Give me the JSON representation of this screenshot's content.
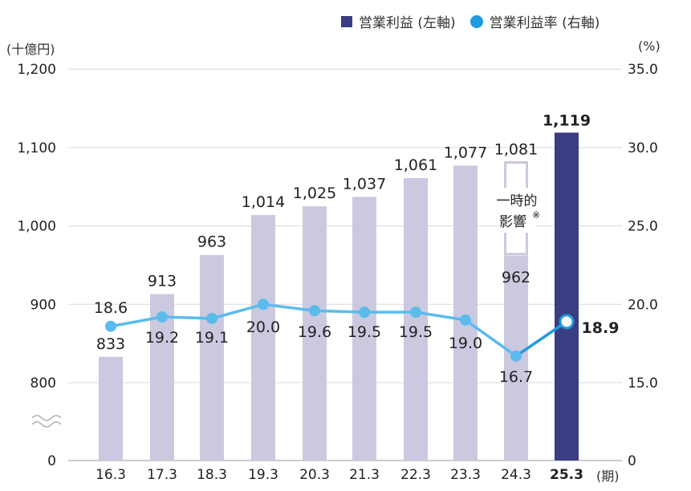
{
  "legend": {
    "bar_label": "営業利益 (左軸)",
    "line_label": "営業利益率 (右軸)"
  },
  "axes": {
    "left_unit": "(十億円)",
    "right_unit": "(%)",
    "x_unit": "(期)"
  },
  "annotation": {
    "line1": "一時的",
    "line2": "影響",
    "mark": "※"
  },
  "colors": {
    "bar": "#cbc9df",
    "bar_highlight": "#3a3d82",
    "line": "#5bbbec",
    "line_highlight": "#1f9ae0",
    "grid": "#d9d9d9"
  },
  "chart_data": {
    "type": "bar",
    "categories": [
      "16.3",
      "17.3",
      "18.3",
      "19.3",
      "20.3",
      "21.3",
      "22.3",
      "23.3",
      "24.3",
      "25.3"
    ],
    "series": [
      {
        "name": "営業利益 (左軸)",
        "axis": "left",
        "type": "bar",
        "values": [
          833,
          913,
          963,
          1014,
          1025,
          1037,
          1061,
          1077,
          962,
          1119
        ],
        "labels": [
          "833",
          "913",
          "963",
          "1,014",
          "1,025",
          "1,037",
          "1,061",
          "1,077",
          "962",
          "1,119"
        ]
      },
      {
        "name": "営業利益率 (右軸)",
        "axis": "right",
        "type": "line",
        "values": [
          18.6,
          19.2,
          19.1,
          20.0,
          19.6,
          19.5,
          19.5,
          19.0,
          16.7,
          18.9
        ],
        "labels": [
          "18.6",
          "19.2",
          "19.1",
          "20.0",
          "19.6",
          "19.5",
          "19.5",
          "19.0",
          "16.7",
          "18.9"
        ]
      }
    ],
    "one_time_impact": {
      "category": "24.3",
      "value": 1081,
      "label": "1,081"
    },
    "highlight_index": 9,
    "left_axis": {
      "ticks": [
        0,
        800,
        900,
        1000,
        1100,
        1200
      ],
      "tick_labels": [
        "0",
        "800",
        "900",
        "1,000",
        "1,100",
        "1,200"
      ],
      "ylim": [
        700,
        1200
      ],
      "broken": true
    },
    "right_axis": {
      "ticks": [
        0,
        15.0,
        20.0,
        25.0,
        30.0,
        35.0
      ],
      "tick_labels": [
        "0",
        "15.0",
        "20.0",
        "25.0",
        "30.0",
        "35.0"
      ],
      "ylim": [
        10,
        35
      ],
      "broken": true
    }
  }
}
